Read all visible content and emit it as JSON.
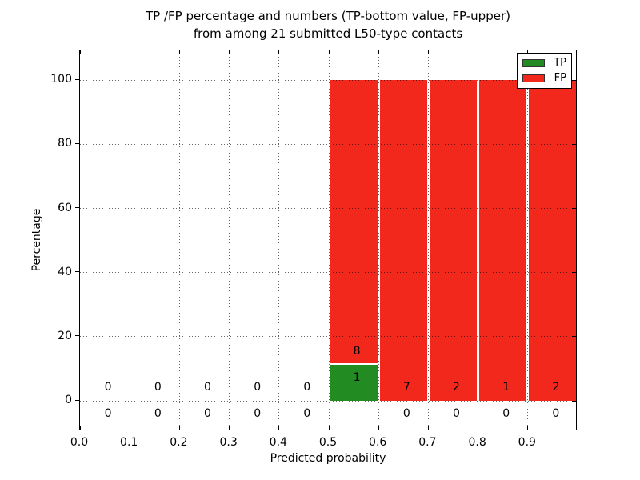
{
  "title": {
    "line1": "TP /FP percentage and numbers (TP-bottom value, FP-upper)",
    "line2": "from among 21 submitted L50-type contacts"
  },
  "chart_data": {
    "type": "bar",
    "stacked": true,
    "title": "TP /FP percentage and numbers (TP-bottom value, FP-upper) from among 21 submitted L50-type contacts",
    "xlabel": "Predicted probability",
    "ylabel": "Percentage",
    "xlim": [
      0.0,
      1.0
    ],
    "ylim": [
      -10,
      110
    ],
    "grid": "dotted",
    "legend_position": "upper right",
    "total_contacts": 21,
    "xticklabels": [
      "0.0",
      "0.1",
      "0.2",
      "0.3",
      "0.4",
      "0.5",
      "0.6",
      "0.7",
      "0.8",
      "0.9"
    ],
    "yticks": [
      0,
      20,
      40,
      60,
      80,
      100
    ],
    "yticklabels": [
      "0",
      "20",
      "40",
      "60",
      "80",
      "100"
    ],
    "series": [
      {
        "name": "TP",
        "color": "#228b22"
      },
      {
        "name": "FP",
        "color": "#f2281d"
      }
    ],
    "bins": [
      {
        "range": [
          0.0,
          0.1
        ],
        "tp": 0,
        "fp": 0
      },
      {
        "range": [
          0.1,
          0.2
        ],
        "tp": 0,
        "fp": 0
      },
      {
        "range": [
          0.2,
          0.3
        ],
        "tp": 0,
        "fp": 0
      },
      {
        "range": [
          0.3,
          0.4
        ],
        "tp": 0,
        "fp": 0
      },
      {
        "range": [
          0.4,
          0.5
        ],
        "tp": 0,
        "fp": 0
      },
      {
        "range": [
          0.5,
          0.6
        ],
        "tp": 1,
        "fp": 8
      },
      {
        "range": [
          0.6,
          0.7
        ],
        "tp": 0,
        "fp": 7
      },
      {
        "range": [
          0.7,
          0.8
        ],
        "tp": 0,
        "fp": 2
      },
      {
        "range": [
          0.8,
          0.9
        ],
        "tp": 0,
        "fp": 1
      },
      {
        "range": [
          0.9,
          1.0
        ],
        "tp": 0,
        "fp": 2
      }
    ]
  }
}
